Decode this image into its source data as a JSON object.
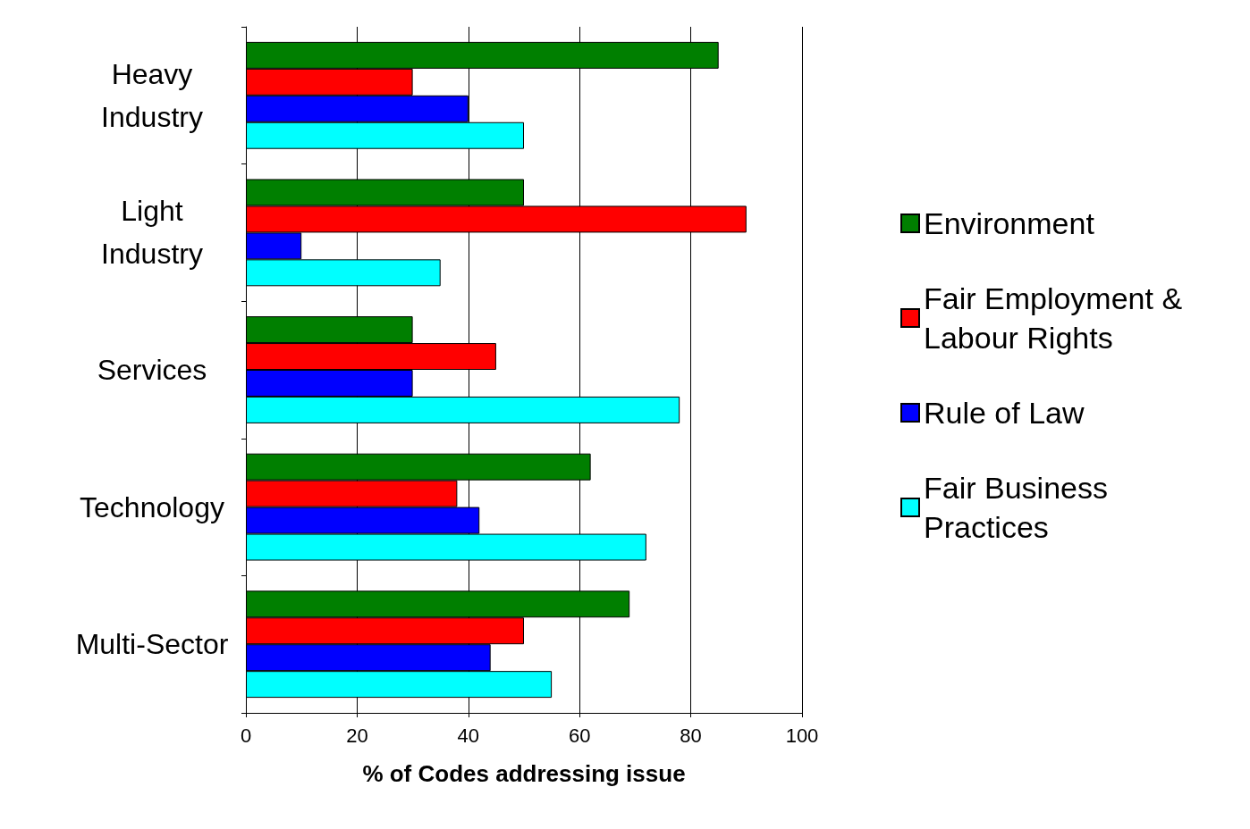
{
  "chart_data": {
    "type": "bar",
    "orientation": "horizontal",
    "xlabel": "% of Codes addressing issue",
    "categories": [
      "Heavy\nIndustry",
      "Light\nIndustry",
      "Services",
      "Technology",
      "Multi-Sector"
    ],
    "series": [
      {
        "name": "Environment",
        "color": "#007f00",
        "values": [
          85,
          50,
          30,
          62,
          69
        ]
      },
      {
        "name": "Fair Employment & Labour Rights",
        "color": "#ff0000",
        "values": [
          30,
          90,
          45,
          38,
          50
        ]
      },
      {
        "name": "Rule of Law",
        "color": "#0000ff",
        "values": [
          40,
          10,
          30,
          42,
          44
        ]
      },
      {
        "name": "Fair Business Practices",
        "color": "#00ffff",
        "values": [
          50,
          35,
          78,
          72,
          55
        ]
      }
    ],
    "xlim": [
      0,
      100
    ],
    "xticks": [
      0,
      20,
      40,
      60,
      80,
      100
    ],
    "grid": "x",
    "legend": "right"
  }
}
